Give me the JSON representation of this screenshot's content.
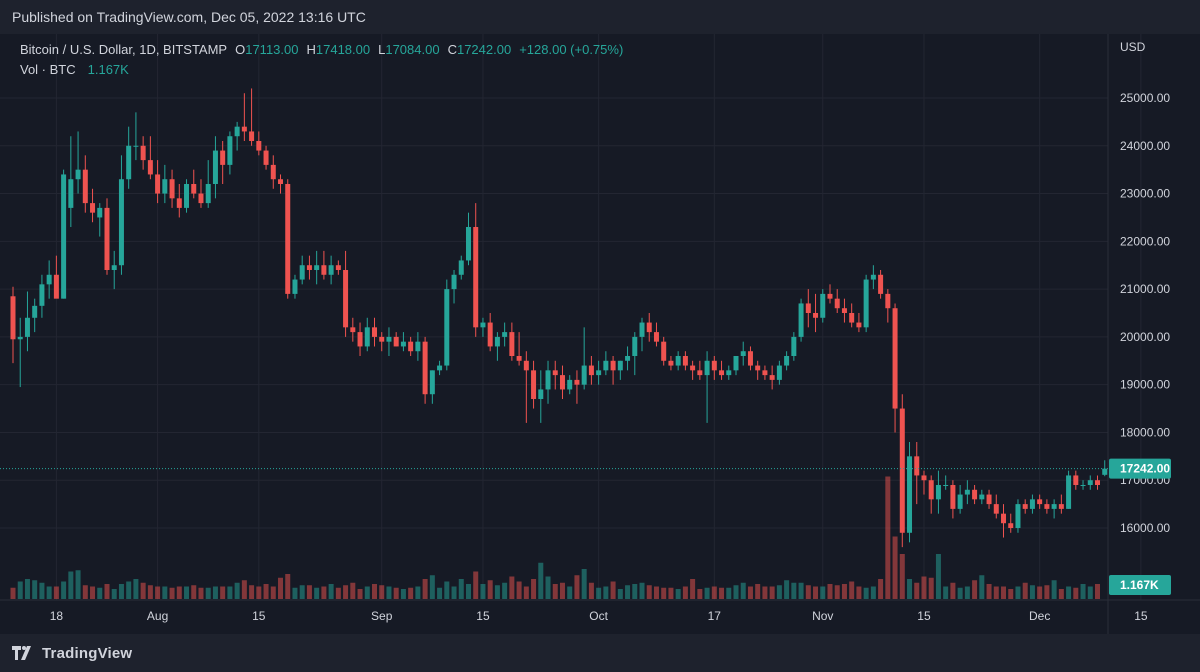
{
  "published": "Published on TradingView.com, Dec 05, 2022 13:16 UTC",
  "brand": "TradingView",
  "legend": {
    "title": "Bitcoin / U.S. Dollar, 1D, BITSTAMP",
    "open_label": "O",
    "open": "17113.00",
    "high_label": "H",
    "high": "17418.00",
    "low_label": "L",
    "low": "17084.00",
    "close_label": "C",
    "close": "17242.00",
    "change": "+128.00 (+0.75%)",
    "vol_label": "Vol · BTC",
    "vol": "1.167K"
  },
  "colors": {
    "up": "#26a69a",
    "down": "#ef5350",
    "background": "#161a25",
    "grid": "#232632",
    "text": "#d1d4dc"
  },
  "chart_data": {
    "type": "candlestick",
    "currency_label": "USD",
    "y_ticks": [
      16000,
      17000,
      18000,
      19000,
      20000,
      21000,
      22000,
      23000,
      24000,
      25000
    ],
    "ylim": [
      15000,
      25700
    ],
    "x_tick_labels": [
      {
        "label": "18",
        "index": 6
      },
      {
        "label": "Aug",
        "index": 20
      },
      {
        "label": "15",
        "index": 34
      },
      {
        "label": "Sep",
        "index": 51
      },
      {
        "label": "15",
        "index": 65
      },
      {
        "label": "Oct",
        "index": 81
      },
      {
        "label": "17",
        "index": 97
      },
      {
        "label": "Nov",
        "index": 112
      },
      {
        "label": "15",
        "index": 126
      },
      {
        "label": "Dec",
        "index": 142
      },
      {
        "label": "15",
        "index": 156
      }
    ],
    "last_price": 17242,
    "last_price_label": "17242.00",
    "last_volume_label": "1.167K",
    "candles": [
      [
        20850,
        21050,
        19450,
        19950
      ],
      [
        19950,
        20400,
        18950,
        20000
      ],
      [
        20000,
        20950,
        19700,
        20400
      ],
      [
        20400,
        20800,
        20100,
        20650
      ],
      [
        20650,
        21300,
        20400,
        21100
      ],
      [
        21100,
        21600,
        20800,
        21300
      ],
      [
        21300,
        21700,
        20850,
        20800
      ],
      [
        20800,
        23500,
        20800,
        23400
      ],
      [
        22700,
        24200,
        22300,
        23300
      ],
      [
        23300,
        24300,
        23000,
        23500
      ],
      [
        23500,
        23800,
        22600,
        22800
      ],
      [
        22800,
        23100,
        22400,
        22600
      ],
      [
        22500,
        22800,
        22100,
        22700
      ],
      [
        22700,
        22900,
        21300,
        21400
      ],
      [
        21400,
        21800,
        21000,
        21500
      ],
      [
        21500,
        23800,
        21300,
        23300
      ],
      [
        23300,
        24400,
        23100,
        24000
      ],
      [
        24000,
        24700,
        23700,
        24000
      ],
      [
        24000,
        24200,
        23500,
        23700
      ],
      [
        23700,
        24200,
        23300,
        23400
      ],
      [
        23400,
        23700,
        22800,
        23000
      ],
      [
        23000,
        23600,
        22800,
        23300
      ],
      [
        23300,
        23500,
        22700,
        22900
      ],
      [
        22900,
        23200,
        22500,
        22700
      ],
      [
        22700,
        23300,
        22600,
        23200
      ],
      [
        23200,
        23500,
        22900,
        23000
      ],
      [
        23000,
        23300,
        22700,
        22800
      ],
      [
        22800,
        23700,
        22700,
        23200
      ],
      [
        23200,
        24200,
        22900,
        23900
      ],
      [
        23900,
        24100,
        23200,
        23600
      ],
      [
        23600,
        24300,
        23400,
        24200
      ],
      [
        24200,
        24500,
        23900,
        24400
      ],
      [
        24400,
        25100,
        24100,
        24300
      ],
      [
        24300,
        25200,
        24000,
        24100
      ],
      [
        24100,
        24300,
        23800,
        23900
      ],
      [
        23900,
        24000,
        23500,
        23600
      ],
      [
        23600,
        23800,
        23100,
        23300
      ],
      [
        23300,
        23400,
        23000,
        23200
      ],
      [
        23200,
        23300,
        20800,
        20900
      ],
      [
        20900,
        21300,
        20800,
        21200
      ],
      [
        21200,
        21700,
        21100,
        21500
      ],
      [
        21500,
        21700,
        21200,
        21400
      ],
      [
        21400,
        21800,
        21100,
        21500
      ],
      [
        21500,
        21800,
        21200,
        21300
      ],
      [
        21300,
        21700,
        21100,
        21500
      ],
      [
        21500,
        21600,
        21300,
        21400
      ],
      [
        21400,
        21800,
        20000,
        20200
      ],
      [
        20200,
        20400,
        19900,
        20100
      ],
      [
        20100,
        20300,
        19600,
        19800
      ],
      [
        19800,
        20400,
        19700,
        20200
      ],
      [
        20200,
        20400,
        19800,
        20000
      ],
      [
        20000,
        20100,
        19700,
        19900
      ],
      [
        19900,
        20200,
        19600,
        20000
      ],
      [
        20000,
        20100,
        19800,
        19800
      ],
      [
        19800,
        20100,
        19700,
        19900
      ],
      [
        19900,
        20000,
        19600,
        19700
      ],
      [
        19700,
        20100,
        19500,
        19900
      ],
      [
        19900,
        20000,
        18600,
        18800
      ],
      [
        18800,
        19300,
        18600,
        19300
      ],
      [
        19300,
        19500,
        19200,
        19400
      ],
      [
        19400,
        21200,
        19300,
        21000
      ],
      [
        21000,
        21400,
        20700,
        21300
      ],
      [
        21300,
        21700,
        21200,
        21600
      ],
      [
        21600,
        22600,
        21500,
        22300
      ],
      [
        22300,
        22800,
        20000,
        20200
      ],
      [
        20200,
        20400,
        20000,
        20300
      ],
      [
        20300,
        20500,
        19700,
        19800
      ],
      [
        19800,
        20100,
        19500,
        20000
      ],
      [
        20000,
        20300,
        19800,
        20100
      ],
      [
        20100,
        20300,
        19500,
        19600
      ],
      [
        19600,
        20100,
        19400,
        19500
      ],
      [
        19500,
        19700,
        18200,
        19300
      ],
      [
        19300,
        19500,
        18500,
        18700
      ],
      [
        18700,
        19300,
        18200,
        18900
      ],
      [
        18900,
        19500,
        18600,
        19300
      ],
      [
        19300,
        19500,
        18900,
        19200
      ],
      [
        19200,
        19400,
        18700,
        18900
      ],
      [
        18900,
        19200,
        18800,
        19100
      ],
      [
        19100,
        19300,
        18600,
        19000
      ],
      [
        19000,
        20200,
        18900,
        19400
      ],
      [
        19400,
        19600,
        19000,
        19200
      ],
      [
        19200,
        19500,
        19000,
        19300
      ],
      [
        19300,
        19700,
        19200,
        19500
      ],
      [
        19500,
        19600,
        19000,
        19300
      ],
      [
        19300,
        19500,
        19100,
        19500
      ],
      [
        19500,
        19800,
        19300,
        19600
      ],
      [
        19600,
        20100,
        19200,
        20000
      ],
      [
        20000,
        20400,
        19700,
        20300
      ],
      [
        20300,
        20500,
        19900,
        20100
      ],
      [
        20100,
        20300,
        19800,
        19900
      ],
      [
        19900,
        20000,
        19400,
        19500
      ],
      [
        19500,
        19600,
        19300,
        19400
      ],
      [
        19400,
        19700,
        19300,
        19600
      ],
      [
        19600,
        19700,
        19300,
        19400
      ],
      [
        19400,
        19500,
        19100,
        19300
      ],
      [
        19300,
        19500,
        19100,
        19200
      ],
      [
        19200,
        19700,
        18200,
        19500
      ],
      [
        19500,
        19600,
        19100,
        19300
      ],
      [
        19300,
        19500,
        19100,
        19200
      ],
      [
        19200,
        19400,
        19100,
        19300
      ],
      [
        19300,
        19600,
        19200,
        19600
      ],
      [
        19600,
        19900,
        19400,
        19700
      ],
      [
        19700,
        19800,
        19300,
        19400
      ],
      [
        19400,
        19500,
        19100,
        19300
      ],
      [
        19300,
        19400,
        19100,
        19200
      ],
      [
        19200,
        19400,
        18900,
        19100
      ],
      [
        19100,
        19500,
        19000,
        19400
      ],
      [
        19400,
        19700,
        19300,
        19600
      ],
      [
        19600,
        20100,
        19500,
        20000
      ],
      [
        20000,
        20800,
        19900,
        20700
      ],
      [
        20700,
        21000,
        20200,
        20500
      ],
      [
        20500,
        20900,
        20100,
        20400
      ],
      [
        20400,
        21000,
        20300,
        20900
      ],
      [
        20900,
        21100,
        20700,
        20800
      ],
      [
        20800,
        21000,
        20500,
        20600
      ],
      [
        20600,
        20800,
        20300,
        20500
      ],
      [
        20500,
        20700,
        20200,
        20300
      ],
      [
        20300,
        20500,
        20100,
        20200
      ],
      [
        20200,
        21300,
        20100,
        21200
      ],
      [
        21200,
        21500,
        21000,
        21300
      ],
      [
        21300,
        21400,
        20800,
        20900
      ],
      [
        20900,
        21000,
        20300,
        20600
      ],
      [
        20600,
        20700,
        18000,
        18500
      ],
      [
        18500,
        18800,
        15600,
        15900
      ],
      [
        15900,
        17800,
        15700,
        17500
      ],
      [
        17500,
        17800,
        16500,
        17100
      ],
      [
        17100,
        17200,
        16700,
        17000
      ],
      [
        17000,
        17100,
        16300,
        16600
      ],
      [
        16600,
        17200,
        16300,
        16900
      ],
      [
        16900,
        17100,
        16800,
        16900
      ],
      [
        16900,
        17000,
        16200,
        16400
      ],
      [
        16400,
        16900,
        16300,
        16700
      ],
      [
        16700,
        17000,
        16500,
        16800
      ],
      [
        16800,
        16900,
        16500,
        16600
      ],
      [
        16600,
        16800,
        16500,
        16700
      ],
      [
        16700,
        16800,
        16400,
        16500
      ],
      [
        16500,
        16700,
        16200,
        16300
      ],
      [
        16300,
        16500,
        15800,
        16100
      ],
      [
        16100,
        16300,
        15900,
        16000
      ],
      [
        16000,
        16600,
        15900,
        16500
      ],
      [
        16500,
        16600,
        16300,
        16400
      ],
      [
        16400,
        16700,
        16300,
        16600
      ],
      [
        16600,
        16700,
        16400,
        16500
      ],
      [
        16500,
        16600,
        16300,
        16400
      ],
      [
        16400,
        16600,
        16200,
        16500
      ],
      [
        16500,
        16700,
        16300,
        16400
      ],
      [
        16400,
        17200,
        16400,
        17100
      ],
      [
        17100,
        17200,
        16800,
        16900
      ],
      [
        16900,
        17000,
        16800,
        16900
      ],
      [
        16900,
        17100,
        16800,
        17000
      ],
      [
        17000,
        17100,
        16800,
        16900
      ],
      [
        17113,
        17418,
        17084,
        17242
      ]
    ],
    "volumes": [
      0.9,
      1.4,
      1.6,
      1.5,
      1.3,
      1.0,
      1.0,
      1.4,
      2.2,
      2.3,
      1.1,
      1.0,
      0.9,
      1.2,
      0.8,
      1.2,
      1.4,
      1.6,
      1.3,
      1.1,
      1.0,
      1.0,
      0.9,
      1.0,
      1.0,
      1.1,
      0.9,
      0.9,
      1.0,
      1.0,
      1.0,
      1.3,
      1.5,
      1.1,
      1.0,
      1.2,
      1.0,
      1.7,
      2.0,
      0.9,
      1.1,
      1.1,
      0.9,
      1.0,
      1.2,
      0.9,
      1.1,
      1.3,
      0.8,
      1.0,
      1.2,
      1.1,
      1.0,
      0.9,
      0.8,
      0.9,
      1.0,
      1.6,
      1.9,
      0.9,
      1.4,
      1.0,
      1.6,
      1.2,
      2.2,
      1.2,
      1.5,
      1.1,
      1.3,
      1.8,
      1.4,
      1.0,
      1.6,
      2.9,
      1.8,
      1.2,
      1.3,
      1.0,
      1.9,
      2.4,
      1.3,
      0.9,
      1.0,
      1.4,
      0.8,
      1.1,
      1.2,
      1.3,
      1.1,
      1.0,
      0.9,
      0.9,
      0.8,
      1.0,
      1.6,
      0.8,
      0.9,
      1.0,
      0.9,
      0.9,
      1.1,
      1.3,
      1.0,
      1.2,
      1.0,
      1.0,
      1.1,
      1.5,
      1.3,
      1.3,
      1.1,
      1.0,
      1.0,
      1.2,
      1.1,
      1.2,
      1.4,
      1.0,
      0.9,
      1.0,
      1.6,
      9.8,
      5.0,
      3.6,
      1.6,
      1.3,
      1.8,
      1.7,
      3.6,
      1.0,
      1.3,
      0.9,
      1.0,
      1.5,
      1.9,
      1.2,
      1.0,
      1.0,
      0.8,
      1.0,
      1.3,
      1.1,
      1.0,
      1.1,
      1.5,
      0.8,
      1.0,
      0.9,
      1.2,
      1.0,
      1.2
    ]
  }
}
